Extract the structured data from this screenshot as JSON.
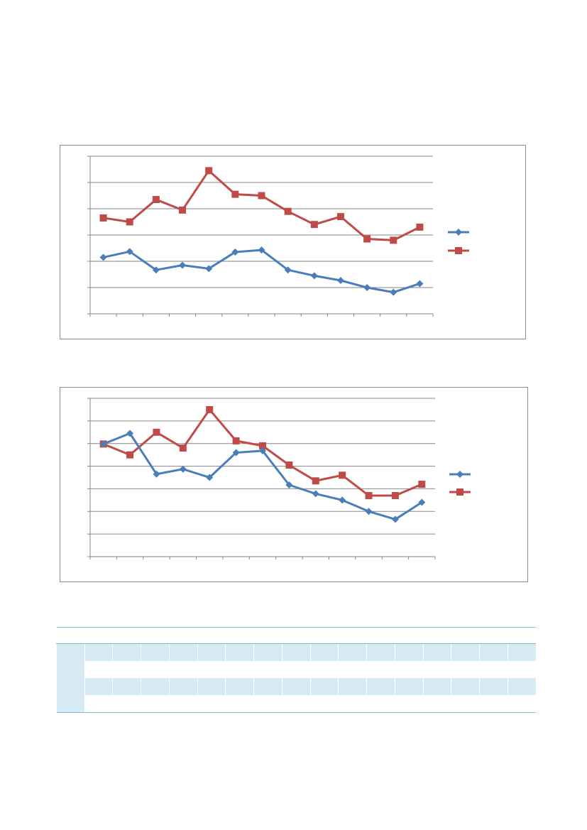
{
  "colors": {
    "series_blue": "#4a7ebb",
    "series_red": "#be4b48",
    "gridline": "#868686",
    "table_shade": "#d6ebf3",
    "table_rule": "#7fb8cc"
  },
  "chart_data": [
    {
      "type": "line",
      "x": [
        1,
        2,
        3,
        4,
        5,
        6,
        7,
        8,
        9,
        10,
        11,
        12,
        13
      ],
      "ylim": [
        0,
        6
      ],
      "y_gridlines": [
        1,
        2,
        3,
        4,
        5,
        6
      ],
      "x_tick_count": 13,
      "legend_position": "right",
      "grid": true,
      "series": [
        {
          "color": "#be4b48",
          "marker": "square",
          "values": [
            3.65,
            3.5,
            4.35,
            3.95,
            5.45,
            4.55,
            4.5,
            3.9,
            3.4,
            3.7,
            2.85,
            2.8,
            3.3
          ]
        },
        {
          "color": "#4a7ebb",
          "marker": "diamond",
          "values": [
            2.15,
            2.37,
            1.67,
            1.85,
            1.72,
            2.35,
            2.43,
            1.67,
            1.45,
            1.27,
            1.0,
            0.82,
            1.15
          ]
        }
      ]
    },
    {
      "type": "line",
      "x": [
        1,
        2,
        3,
        4,
        5,
        6,
        7,
        8,
        9,
        10,
        11,
        12,
        13
      ],
      "ylim": [
        0,
        7
      ],
      "y_gridlines": [
        1,
        2,
        3,
        4,
        5,
        6,
        7
      ],
      "x_tick_count": 13,
      "legend_position": "right",
      "grid": true,
      "series": [
        {
          "color": "#be4b48",
          "marker": "square",
          "values": [
            4.98,
            4.5,
            5.5,
            4.8,
            6.5,
            5.12,
            4.9,
            4.05,
            3.35,
            3.6,
            2.7,
            2.7,
            3.2
          ]
        },
        {
          "color": "#4a7ebb",
          "marker": "diamond",
          "values": [
            4.98,
            5.45,
            3.65,
            3.87,
            3.5,
            4.6,
            4.68,
            3.17,
            2.78,
            2.5,
            2.0,
            1.65,
            2.4
          ]
        }
      ]
    }
  ],
  "table": {
    "columns": 17,
    "rows": 4
  }
}
